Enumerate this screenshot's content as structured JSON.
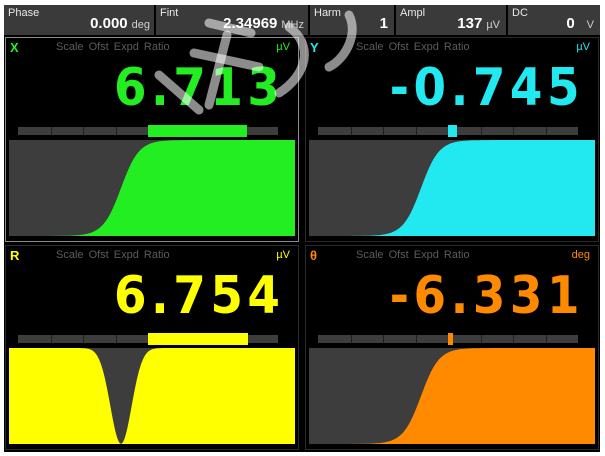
{
  "topbar": {
    "phase": {
      "label": "Phase",
      "value": "0.000",
      "unit": "deg"
    },
    "fint": {
      "label": "Fint",
      "value": "2.34969",
      "unit": "MHz"
    },
    "harm": {
      "label": "Harm",
      "value": "1"
    },
    "ampl": {
      "label": "Ampl",
      "value": "137",
      "unit": "µV"
    },
    "dc": {
      "label": "DC",
      "value": "0",
      "unit": "V"
    }
  },
  "channels": {
    "x": {
      "name": "X",
      "menu": "Scale Ofst Expd Ratio",
      "unit": "µV",
      "value": "6.713",
      "color": "#22ee22",
      "bar_from": 0.5,
      "bar_to": 0.88,
      "shape": "sigmoid"
    },
    "y": {
      "name": "Y",
      "menu": "Scale Ofst Expd Ratio",
      "unit": "µV",
      "value": "-0.745",
      "color": "#22e8f0",
      "bar_from": 0.5,
      "bar_to": 0.535,
      "shape": "sigmoid"
    },
    "r": {
      "name": "R",
      "menu": "Scale Ofst Expd Ratio",
      "unit": "µV",
      "value": "6.754",
      "color": "#ffff00",
      "bar_from": 0.5,
      "bar_to": 0.885,
      "shape": "dip"
    },
    "theta": {
      "name": "θ",
      "menu": "Scale Ofst Expd Ratio",
      "unit": "deg",
      "value": "-6.331",
      "color": "#ff8a00",
      "bar_from": 0.5,
      "bar_to": 0.518,
      "shape": "sigmoid"
    }
  },
  "colors": {
    "background": "#000000",
    "plot_gray": "#3d3d3d",
    "track_gray": "#3d3d3d"
  }
}
